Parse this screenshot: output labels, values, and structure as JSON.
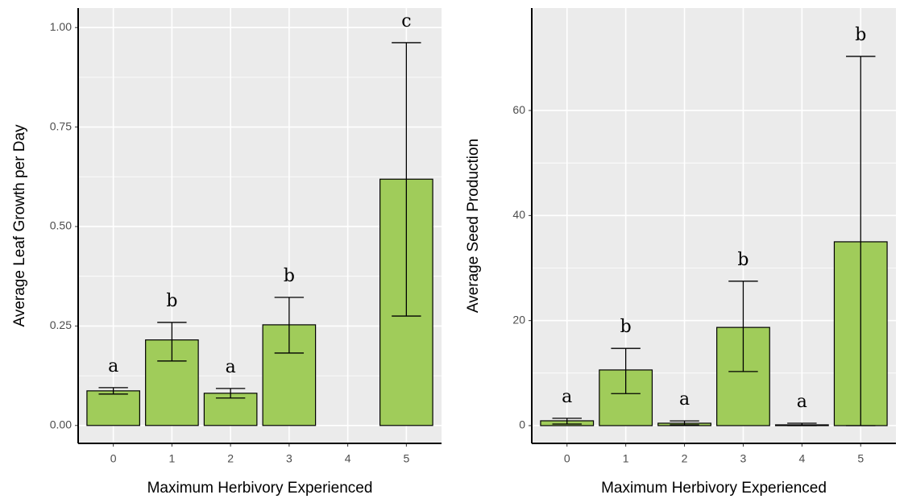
{
  "chart_data": [
    {
      "type": "bar",
      "ylabel": "Average Leaf Growth per Day",
      "xlabel": "Maximum Herbivory Experienced",
      "categories": [
        "0",
        "1",
        "2",
        "3",
        "4",
        "5"
      ],
      "values": [
        0.087,
        0.215,
        0.081,
        0.253,
        null,
        0.619
      ],
      "err_low": [
        0.079,
        0.162,
        0.069,
        0.182,
        null,
        0.275
      ],
      "err_high": [
        0.095,
        0.259,
        0.093,
        0.322,
        null,
        0.962
      ],
      "letters": [
        "a",
        "b",
        "a",
        "b",
        null,
        "c"
      ],
      "color": "#a0cc5a",
      "grid": true,
      "ylim": [
        -0.045,
        1.049
      ],
      "yticks": [
        {
          "value": 0,
          "label": "0.00"
        },
        {
          "value": 0.25,
          "label": "0.25"
        },
        {
          "value": 0.5,
          "label": "0.50"
        },
        {
          "value": 0.75,
          "label": "0.75"
        },
        {
          "value": 1,
          "label": "1.00"
        }
      ]
    },
    {
      "type": "bar",
      "ylabel": "Average Seed Production",
      "xlabel": "Maximum Herbivory Experienced",
      "categories": [
        "0",
        "1",
        "2",
        "3",
        "4",
        "5"
      ],
      "values": [
        0.92,
        10.6,
        0.46,
        18.7,
        0.15,
        35.0
      ],
      "err_low": [
        0.3,
        6.1,
        0.15,
        10.3,
        0,
        0
      ],
      "err_high": [
        1.4,
        14.7,
        0.9,
        27.5,
        0.46,
        70.3
      ],
      "letters": [
        "a",
        "b",
        "a",
        "b",
        "a",
        "b"
      ],
      "color": "#a0cc5a",
      "grid": true,
      "ylim": [
        -3.38,
        79.5
      ],
      "yticks": [
        0,
        20,
        40,
        60
      ]
    }
  ]
}
